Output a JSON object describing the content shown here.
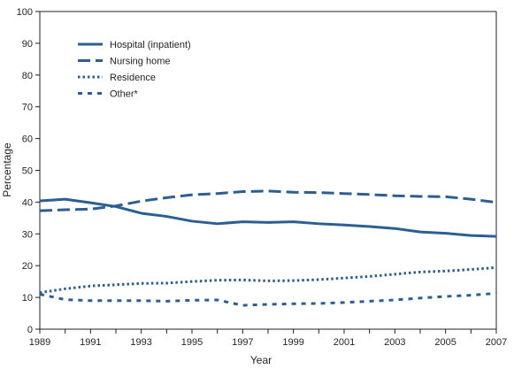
{
  "chart_data": {
    "type": "line",
    "xlabel": "Year",
    "ylabel": "Percentage",
    "xlim": [
      1989,
      2007
    ],
    "ylim": [
      0,
      100
    ],
    "x_ticks": [
      "1989",
      "1991",
      "1993",
      "1995",
      "1997",
      "1999",
      "2001",
      "2003",
      "2005",
      "2007"
    ],
    "y_ticks": [
      "0",
      "10",
      "20",
      "30",
      "40",
      "50",
      "60",
      "70",
      "80",
      "90",
      "100"
    ],
    "x": [
      1989,
      1990,
      1991,
      1992,
      1993,
      1994,
      1995,
      1996,
      1997,
      1998,
      1999,
      2000,
      2001,
      2002,
      2003,
      2004,
      2005,
      2006,
      2007
    ],
    "series": [
      {
        "name": "Hospital (inpatient)",
        "style": "solid",
        "values": [
          40.4,
          40.9,
          39.8,
          38.6,
          36.5,
          35.5,
          34.0,
          33.2,
          33.8,
          33.6,
          33.8,
          33.2,
          32.8,
          32.3,
          31.7,
          30.6,
          30.2,
          29.5,
          29.2
        ]
      },
      {
        "name": "Nursing home",
        "style": "dash",
        "values": [
          37.3,
          37.6,
          37.8,
          38.8,
          40.3,
          41.4,
          42.3,
          42.7,
          43.3,
          43.5,
          43.1,
          43.0,
          42.7,
          42.4,
          42.0,
          41.8,
          41.7,
          40.9,
          39.9
        ]
      },
      {
        "name": "Residence",
        "style": "dot",
        "values": [
          11.5,
          12.7,
          13.6,
          14.0,
          14.4,
          14.5,
          15.0,
          15.4,
          15.5,
          15.2,
          15.3,
          15.6,
          16.1,
          16.6,
          17.3,
          18.0,
          18.3,
          18.8,
          19.4
        ]
      },
      {
        "name": "Other*",
        "style": "sparse-dash",
        "values": [
          11.0,
          9.3,
          9.0,
          9.0,
          9.0,
          8.8,
          9.1,
          9.2,
          7.5,
          7.8,
          8.0,
          8.1,
          8.4,
          8.8,
          9.2,
          9.8,
          10.3,
          10.7,
          11.3
        ]
      }
    ],
    "color": "#2b5f94",
    "grid": false,
    "legend_position": "top-left"
  }
}
